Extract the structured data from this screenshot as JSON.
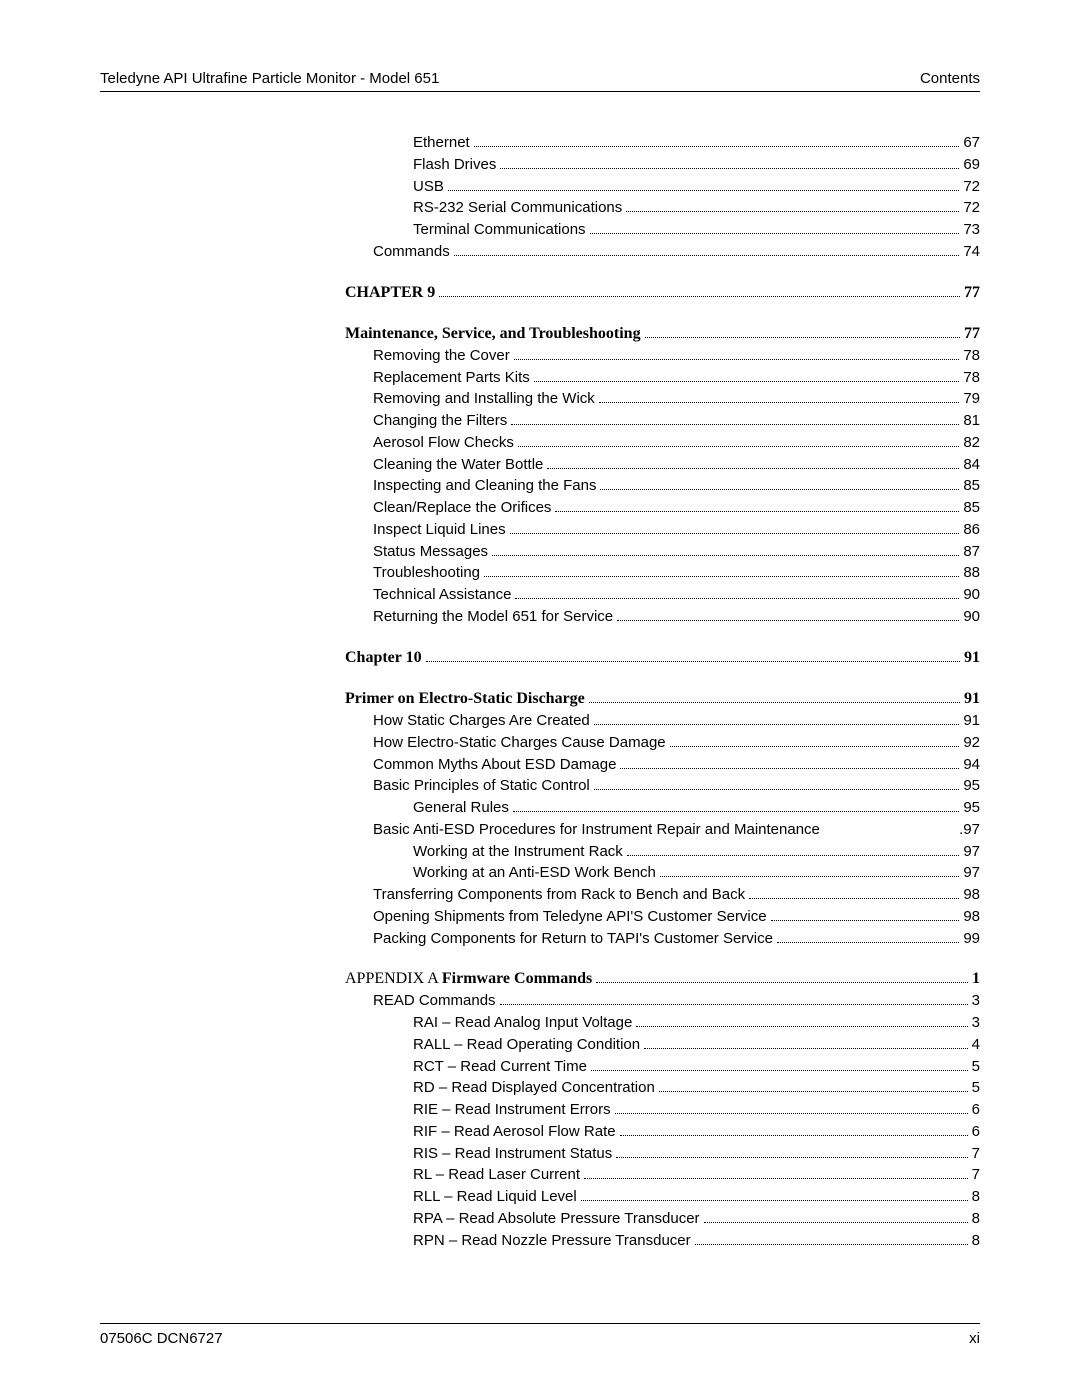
{
  "header": {
    "left": "Teledyne API Ultrafine Particle Monitor - Model 651",
    "right": "Contents"
  },
  "footer": {
    "left": "07506C DCN6727",
    "right": "xi"
  },
  "toc": [
    {
      "label": "Ethernet",
      "page": "67",
      "indent": 2,
      "bold": false,
      "serif": false,
      "gap": false,
      "leader": true
    },
    {
      "label": "Flash Drives",
      "page": "69",
      "indent": 2,
      "bold": false,
      "serif": false,
      "gap": false,
      "leader": true
    },
    {
      "label": "USB",
      "page": "72",
      "indent": 2,
      "bold": false,
      "serif": false,
      "gap": false,
      "leader": true
    },
    {
      "label": "RS-232 Serial Communications",
      "page": "72",
      "indent": 2,
      "bold": false,
      "serif": false,
      "gap": false,
      "leader": true
    },
    {
      "label": "Terminal Communications",
      "page": "73",
      "indent": 2,
      "bold": false,
      "serif": false,
      "gap": false,
      "leader": true
    },
    {
      "label": "Commands",
      "page": "74",
      "indent": 1,
      "bold": false,
      "serif": false,
      "gap": false,
      "leader": true
    },
    {
      "label": "CHAPTER 9",
      "page": "77",
      "indent": 0,
      "bold": true,
      "serif": true,
      "gap": true,
      "leader": true
    },
    {
      "label": "Maintenance, Service, and Troubleshooting",
      "page": "77",
      "indent": 0,
      "bold": true,
      "serif": true,
      "gap": true,
      "leader": true
    },
    {
      "label": "Removing the Cover",
      "page": "78",
      "indent": 1,
      "bold": false,
      "serif": false,
      "gap": false,
      "leader": true
    },
    {
      "label": "Replacement Parts Kits",
      "page": "78",
      "indent": 1,
      "bold": false,
      "serif": false,
      "gap": false,
      "leader": true
    },
    {
      "label": "Removing and Installing the Wick",
      "page": "79",
      "indent": 1,
      "bold": false,
      "serif": false,
      "gap": false,
      "leader": true
    },
    {
      "label": "Changing the Filters",
      "page": "81",
      "indent": 1,
      "bold": false,
      "serif": false,
      "gap": false,
      "leader": true
    },
    {
      "label": "Aerosol Flow Checks",
      "page": "82",
      "indent": 1,
      "bold": false,
      "serif": false,
      "gap": false,
      "leader": true
    },
    {
      "label": "Cleaning the Water Bottle",
      "page": "84",
      "indent": 1,
      "bold": false,
      "serif": false,
      "gap": false,
      "leader": true
    },
    {
      "label": "Inspecting and Cleaning the Fans",
      "page": "85",
      "indent": 1,
      "bold": false,
      "serif": false,
      "gap": false,
      "leader": true
    },
    {
      "label": "Clean/Replace the Orifices",
      "page": "85",
      "indent": 1,
      "bold": false,
      "serif": false,
      "gap": false,
      "leader": true
    },
    {
      "label": "Inspect Liquid Lines",
      "page": "86",
      "indent": 1,
      "bold": false,
      "serif": false,
      "gap": false,
      "leader": true
    },
    {
      "label": "Status Messages",
      "page": "87",
      "indent": 1,
      "bold": false,
      "serif": false,
      "gap": false,
      "leader": true
    },
    {
      "label": "Troubleshooting",
      "page": "88",
      "indent": 1,
      "bold": false,
      "serif": false,
      "gap": false,
      "leader": true
    },
    {
      "label": "Technical Assistance",
      "page": "90",
      "indent": 1,
      "bold": false,
      "serif": false,
      "gap": false,
      "leader": true
    },
    {
      "label": "Returning the Model 651 for Service",
      "page": "90",
      "indent": 1,
      "bold": false,
      "serif": false,
      "gap": false,
      "leader": true
    },
    {
      "label": "Chapter 10",
      "page": "91",
      "indent": 0,
      "bold": true,
      "serif": true,
      "gap": true,
      "leader": true
    },
    {
      "label": "Primer on Electro-Static Discharge",
      "page": "91",
      "indent": 0,
      "bold": true,
      "serif": true,
      "gap": true,
      "leader": true
    },
    {
      "label": "How Static Charges Are Created",
      "page": "91",
      "indent": 1,
      "bold": false,
      "serif": false,
      "gap": false,
      "leader": true
    },
    {
      "label": "How Electro-Static Charges Cause Damage",
      "page": "92",
      "indent": 1,
      "bold": false,
      "serif": false,
      "gap": false,
      "leader": true
    },
    {
      "label": "Common Myths About ESD Damage",
      "page": "94",
      "indent": 1,
      "bold": false,
      "serif": false,
      "gap": false,
      "leader": true
    },
    {
      "label": "Basic Principles of Static Control",
      "page": "95",
      "indent": 1,
      "bold": false,
      "serif": false,
      "gap": false,
      "leader": true
    },
    {
      "label": "General Rules",
      "page": "95",
      "indent": 2,
      "bold": false,
      "serif": false,
      "gap": false,
      "leader": true
    },
    {
      "label": "Basic Anti-ESD Procedures for Instrument Repair and Maintenance",
      "page": ".97",
      "indent": 1,
      "bold": false,
      "serif": false,
      "gap": false,
      "leader": false
    },
    {
      "label": "Working at the Instrument Rack",
      "page": "97",
      "indent": 2,
      "bold": false,
      "serif": false,
      "gap": false,
      "leader": true
    },
    {
      "label": "Working at an Anti-ESD Work Bench",
      "page": "97",
      "indent": 2,
      "bold": false,
      "serif": false,
      "gap": false,
      "leader": true
    },
    {
      "label": "Transferring Components from Rack to Bench and Back",
      "page": "98",
      "indent": 1,
      "bold": false,
      "serif": false,
      "gap": false,
      "leader": true
    },
    {
      "label": "Opening Shipments from Teledyne API'S Customer Service",
      "page": "98",
      "indent": 1,
      "bold": false,
      "serif": false,
      "gap": false,
      "leader": true
    },
    {
      "label": "Packing Components for Return to TAPI's Customer Service",
      "page": "99",
      "indent": 1,
      "bold": false,
      "serif": false,
      "gap": false,
      "leader": true
    },
    {
      "label": "APPENDIX A Firmware Commands",
      "page": "1",
      "indent": 0,
      "bold": true,
      "serif": true,
      "gap": true,
      "leader": true,
      "prefix_plain": "APPENDIX A ",
      "suffix_bold": "Firmware Commands"
    },
    {
      "label": "READ Commands",
      "page": "3",
      "indent": 1,
      "bold": false,
      "serif": false,
      "gap": false,
      "leader": true
    },
    {
      "label": "RAI – Read Analog Input Voltage",
      "page": "3",
      "indent": 2,
      "bold": false,
      "serif": false,
      "gap": false,
      "leader": true
    },
    {
      "label": "RALL – Read Operating Condition",
      "page": "4",
      "indent": 2,
      "bold": false,
      "serif": false,
      "gap": false,
      "leader": true
    },
    {
      "label": "RCT – Read Current Time",
      "page": "5",
      "indent": 2,
      "bold": false,
      "serif": false,
      "gap": false,
      "leader": true
    },
    {
      "label": "RD – Read Displayed Concentration",
      "page": "5",
      "indent": 2,
      "bold": false,
      "serif": false,
      "gap": false,
      "leader": true
    },
    {
      "label": "RIE – Read Instrument Errors",
      "page": "6",
      "indent": 2,
      "bold": false,
      "serif": false,
      "gap": false,
      "leader": true
    },
    {
      "label": "RIF – Read Aerosol Flow Rate",
      "page": "6",
      "indent": 2,
      "bold": false,
      "serif": false,
      "gap": false,
      "leader": true
    },
    {
      "label": "RIS – Read Instrument Status",
      "page": "7",
      "indent": 2,
      "bold": false,
      "serif": false,
      "gap": false,
      "leader": true
    },
    {
      "label": "RL – Read Laser Current",
      "page": "7",
      "indent": 2,
      "bold": false,
      "serif": false,
      "gap": false,
      "leader": true
    },
    {
      "label": "RLL – Read Liquid Level",
      "page": "8",
      "indent": 2,
      "bold": false,
      "serif": false,
      "gap": false,
      "leader": true
    },
    {
      "label": "RPA – Read Absolute Pressure Transducer",
      "page": "8",
      "indent": 2,
      "bold": false,
      "serif": false,
      "gap": false,
      "leader": true
    },
    {
      "label": "RPN – Read Nozzle Pressure Transducer",
      "page": "8",
      "indent": 2,
      "bold": false,
      "serif": false,
      "gap": false,
      "leader": true
    }
  ]
}
